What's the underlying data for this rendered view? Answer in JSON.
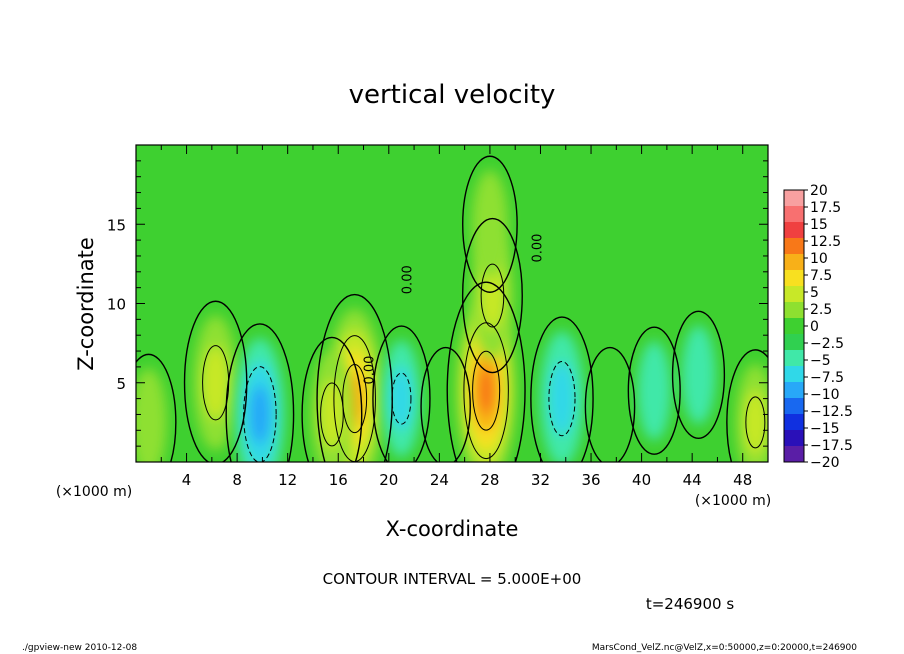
{
  "chart_data": {
    "type": "heatmap",
    "title": "vertical velocity",
    "xlabel": "X-coordinate",
    "ylabel": "Z-coordinate",
    "x_unit": "(×1000 m)",
    "y_unit": "(×1000 m)",
    "xlim": [
      0,
      50
    ],
    "ylim": [
      0,
      20
    ],
    "x_ticks": [
      4,
      8,
      12,
      16,
      20,
      24,
      28,
      32,
      36,
      40,
      44,
      48
    ],
    "y_ticks": [
      5,
      10,
      15
    ],
    "colorbar": {
      "levels": [
        -20,
        -17.5,
        -15,
        -12.5,
        -10,
        -7.5,
        -5,
        -2.5,
        0,
        2.5,
        5,
        7.5,
        10,
        12.5,
        15,
        17.5,
        20
      ],
      "tick_labels": [
        "20",
        "17.5",
        "15",
        "12.5",
        "10",
        "7.5",
        "5",
        "2.5",
        "0",
        "−2.5",
        "−5",
        "−7.5",
        "−10",
        "−12.5",
        "−15",
        "−17.5",
        "−20"
      ],
      "colors": [
        "#5a1ea6",
        "#2a10b8",
        "#1030e0",
        "#1868f0",
        "#28a8f8",
        "#30d8e8",
        "#40e8a8",
        "#30d050",
        "#3ed030",
        "#8ee030",
        "#c8e828",
        "#f8e020",
        "#f8b018",
        "#f87818",
        "#f04040",
        "#f87070",
        "#f8a0a0"
      ]
    },
    "contour_levels": [
      -10,
      -5,
      0,
      5,
      10
    ],
    "features": [
      {
        "x": 1.0,
        "z": 2.5,
        "w": 4
      },
      {
        "x": 6.3,
        "z": 5.0,
        "w": 7
      },
      {
        "x": 9.8,
        "z": 3.0,
        "w": -9
      },
      {
        "x": 17.3,
        "z": 4.0,
        "w": 12
      },
      {
        "x": 15.5,
        "z": 3.0,
        "w": 6
      },
      {
        "x": 21.0,
        "z": 4.0,
        "w": -5
      },
      {
        "x": 24.5,
        "z": 3.5,
        "w": 2
      },
      {
        "x": 27.7,
        "z": 4.5,
        "w": 13
      },
      {
        "x": 28.2,
        "z": 10.5,
        "w": 6
      },
      {
        "x": 28.0,
        "z": 15.0,
        "w": 4
      },
      {
        "x": 33.7,
        "z": 4.0,
        "w": -7
      },
      {
        "x": 37.5,
        "z": 3.5,
        "w": 2
      },
      {
        "x": 41.0,
        "z": 4.5,
        "w": -3
      },
      {
        "x": 44.5,
        "z": 5.5,
        "w": -3
      },
      {
        "x": 49.0,
        "z": 2.5,
        "w": 5
      }
    ],
    "contour_labels": [
      {
        "x": 18.8,
        "z": 5.8,
        "text": "0.00"
      },
      {
        "x": 21.8,
        "z": 11.5,
        "text": "0.00"
      },
      {
        "x": 32.1,
        "z": 13.5,
        "text": "0.00"
      }
    ]
  },
  "contour_interval": "CONTOUR INTERVAL = 5.000E+00",
  "time_label": "t=246900 s",
  "footer_left": "./gpview-new  2010-12-08",
  "footer_right": "MarsCond_VelZ.nc@VelZ,x=0:50000,z=0:20000,t=246900"
}
